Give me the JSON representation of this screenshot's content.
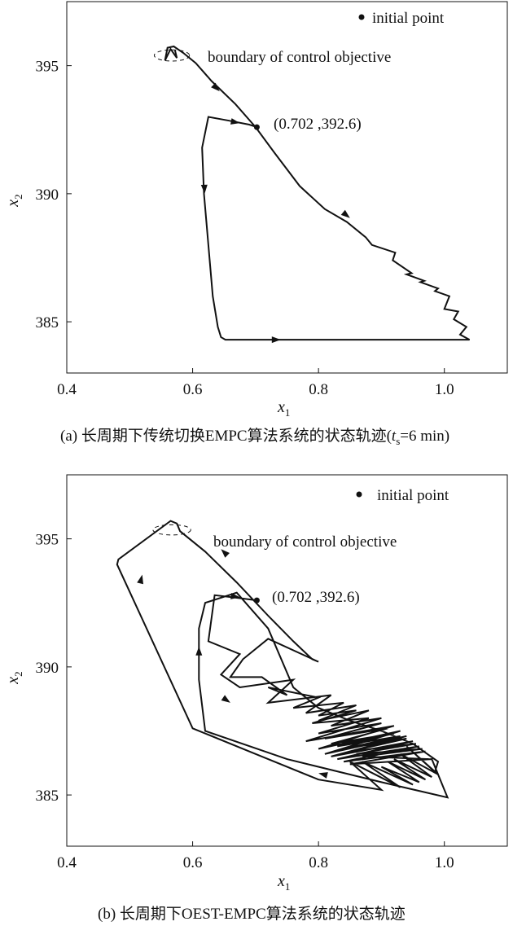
{
  "chart_data": [
    {
      "type": "line",
      "panel_caption_prefix": "(a) 长周期下传统切换EMPC算法系统的状态轨迹(",
      "panel_caption_var": "t",
      "panel_caption_sub": "s",
      "panel_caption_suffix": "=6 min)",
      "xlabel_var": "x",
      "xlabel_sub": "1",
      "ylabel_var": "x",
      "ylabel_sub": "2",
      "xlim": [
        0.4,
        1.1
      ],
      "ylim": [
        383.0,
        397.5
      ],
      "xticks": [
        0.4,
        0.6,
        0.8,
        1.0
      ],
      "xtick_labels": [
        "0.4",
        "0.6",
        "0.8",
        "1.0"
      ],
      "yticks": [
        385,
        390,
        395
      ],
      "ytick_labels": [
        "385",
        "390",
        "395"
      ],
      "legend": {
        "marker": "dot",
        "label": "initial point",
        "position": "top-right"
      },
      "boundary_label": "boundary of control objective",
      "boundary_ellipse": {
        "cx": 0.567,
        "cy": 395.4,
        "rx": 0.028,
        "ry": 0.22
      },
      "initial_point": {
        "x": 0.702,
        "y": 392.6
      },
      "initial_point_label": "(0.702 ,392.6)",
      "series": [
        {
          "x": [
            0.702,
            0.69,
            0.658,
            0.625,
            0.615,
            0.618,
            0.625,
            0.632,
            0.64,
            0.645,
            0.652,
            0.74,
            0.85,
            0.95,
            1.04,
            1.025,
            1.035,
            1.015,
            1.022,
            1.0,
            1.008,
            0.985,
            0.99,
            0.962,
            0.968,
            0.94,
            0.948,
            0.918,
            0.922,
            0.885,
            0.875,
            0.845,
            0.81,
            0.77,
            0.73,
            0.7,
            0.668,
            0.63,
            0.605,
            0.585,
            0.57,
            0.56,
            0.556,
            0.565,
            0.575,
            0.572
          ],
          "y": [
            392.6,
            392.7,
            392.85,
            393.0,
            391.8,
            390.0,
            388.0,
            386.0,
            384.8,
            384.4,
            384.3,
            384.3,
            384.3,
            384.3,
            384.3,
            384.5,
            384.8,
            385.1,
            385.4,
            385.5,
            386.0,
            386.2,
            386.3,
            386.55,
            386.6,
            386.85,
            386.9,
            387.4,
            387.7,
            388.0,
            388.3,
            388.9,
            389.4,
            390.3,
            391.6,
            392.6,
            393.5,
            394.4,
            395.1,
            395.5,
            395.75,
            395.7,
            395.2,
            395.65,
            395.3,
            395.6
          ]
        }
      ],
      "arrows": [
        {
          "x": 0.675,
          "y": 392.76,
          "dir": -1
        },
        {
          "x": 0.619,
          "y": 390.0,
          "dir": 1
        },
        {
          "x": 0.74,
          "y": 384.3,
          "dir": 1
        },
        {
          "x": 0.85,
          "y": 389.05,
          "dir": -1
        },
        {
          "x": 0.643,
          "y": 394.0,
          "dir": -1
        }
      ]
    },
    {
      "type": "line",
      "panel_caption_prefix": "(b) 长周期下OEST-EMPC算法系统的状态轨迹",
      "panel_caption_var": "",
      "panel_caption_sub": "",
      "panel_caption_suffix": "",
      "xlabel_var": "x",
      "xlabel_sub": "1",
      "ylabel_var": "x",
      "ylabel_sub": "2",
      "xlim": [
        0.4,
        1.1
      ],
      "ylim": [
        383.0,
        397.5
      ],
      "xticks": [
        0.4,
        0.6,
        0.8,
        1.0
      ],
      "xtick_labels": [
        "0.4",
        "0.6",
        "0.8",
        "1.0"
      ],
      "yticks": [
        385,
        390,
        395
      ],
      "ytick_labels": [
        "385",
        "390",
        "395"
      ],
      "legend": {
        "marker": "dot",
        "label": "initial point",
        "position": "top-right"
      },
      "boundary_label": "boundary of control objective",
      "boundary_ellipse": {
        "cx": 0.567,
        "cy": 395.35,
        "rx": 0.03,
        "ry": 0.2
      },
      "initial_point": {
        "x": 0.702,
        "y": 392.6
      },
      "initial_point_label": "(0.702 ,392.6)",
      "series": [
        {
          "x": [
            0.702,
            0.67,
            0.635,
            0.625,
            0.675,
            0.645,
            0.675,
            0.76,
            0.72,
            0.82,
            0.78,
            0.86,
            0.8,
            0.88,
            0.82,
            0.9,
            0.78,
            0.92,
            0.8,
            0.93,
            0.81,
            0.94,
            0.82,
            0.95,
            0.83,
            0.96,
            0.84,
            0.97,
            0.85,
            0.98,
            1.0,
            1.005,
            0.9,
            0.75,
            0.62,
            0.61,
            0.61,
            0.62,
            0.67,
            0.72,
            0.76,
            0.8,
            0.85,
            0.9,
            0.95,
            0.99,
            0.985,
            0.94,
            0.99,
            0.93,
            0.98,
            0.92,
            0.97,
            0.91,
            0.96,
            0.9,
            0.95,
            0.87,
            0.93,
            0.85,
            0.9,
            0.8,
            0.7,
            0.6,
            0.48,
            0.482,
            0.565,
            0.575,
            0.58,
            0.62,
            0.67,
            0.72,
            0.76,
            0.79,
            0.8,
            0.72,
            0.68,
            0.66,
            0.71,
            0.75,
            0.72,
            0.8,
            0.76,
            0.84,
            0.8,
            0.86,
            0.79,
            0.88,
            0.8,
            0.9,
            0.81,
            0.91,
            0.82,
            0.92,
            0.83,
            0.93,
            0.84,
            0.94,
            0.85,
            0.955,
            0.86,
            0.965,
            0.87,
            0.975
          ],
          "y": [
            392.6,
            392.7,
            392.8,
            391.0,
            390.5,
            389.7,
            389.2,
            389.5,
            388.6,
            388.9,
            388.2,
            388.5,
            387.9,
            388.3,
            387.7,
            388.0,
            387.1,
            387.7,
            386.8,
            387.5,
            386.6,
            387.3,
            386.5,
            387.1,
            386.4,
            386.9,
            386.3,
            386.7,
            386.2,
            386.4,
            385.2,
            384.9,
            385.5,
            386.4,
            387.5,
            389.5,
            391.5,
            392.5,
            392.9,
            391.5,
            389.2,
            388.4,
            387.9,
            387.5,
            387.0,
            386.3,
            385.9,
            386.9,
            385.8,
            386.6,
            385.7,
            386.4,
            385.6,
            386.3,
            385.5,
            386.1,
            385.4,
            386.3,
            385.3,
            386.3,
            385.2,
            385.6,
            386.6,
            387.6,
            394.0,
            394.2,
            395.7,
            395.6,
            395.3,
            394.5,
            393.3,
            392.0,
            391.0,
            390.3,
            390.2,
            391.1,
            390.3,
            389.6,
            389.6,
            388.9,
            389.2,
            388.8,
            388.4,
            388.6,
            388.1,
            388.3,
            387.8,
            388.0,
            387.4,
            387.8,
            387.2,
            387.6,
            387.0,
            387.4,
            386.9,
            387.3,
            386.8,
            387.2,
            386.7,
            387.0,
            386.6,
            386.8,
            386.5,
            386.4
          ]
        }
      ],
      "arrows": [
        {
          "x": 0.675,
          "y": 392.72,
          "dir": -1
        },
        {
          "x": 0.52,
          "y": 393.6,
          "dir": 1
        },
        {
          "x": 0.61,
          "y": 390.8,
          "dir": 1
        },
        {
          "x": 0.8,
          "y": 385.85,
          "dir": 1
        },
        {
          "x": 0.66,
          "y": 388.6,
          "dir": 1
        },
        {
          "x": 0.645,
          "y": 394.6,
          "dir": -1
        }
      ]
    }
  ]
}
